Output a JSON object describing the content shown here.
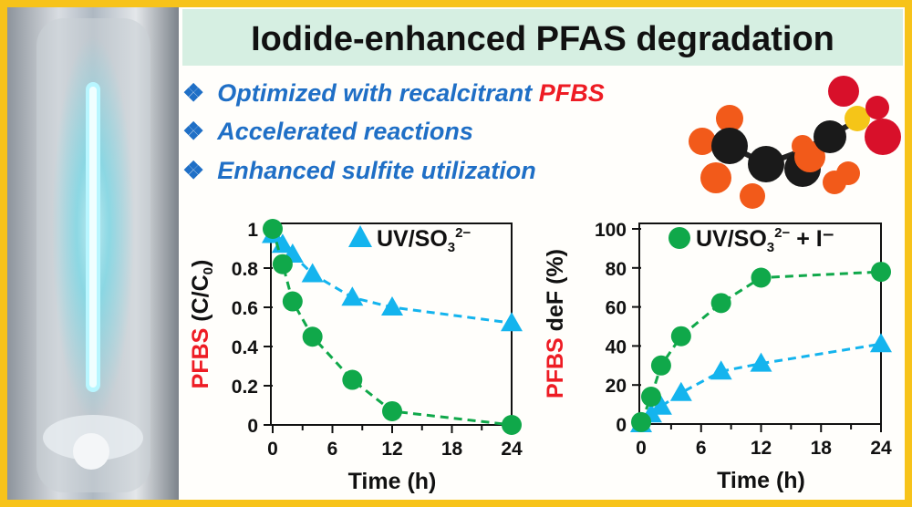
{
  "title": "Iodide-enhanced PFAS degradation",
  "bullets": [
    {
      "symbol": "❖",
      "text": "Optimized with recalcitrant ",
      "highlight": "PFBS"
    },
    {
      "symbol": "❖",
      "text": "Accelerated reactions"
    },
    {
      "symbol": "❖",
      "text": "Enhanced sulfite utilization"
    }
  ],
  "colors": {
    "border": "#f7c31a",
    "title_bg": "#d6efe2",
    "bullet": "#1f6fc6",
    "highlight": "#ee1c24",
    "green": "#10a84a",
    "blue": "#14b4ee"
  },
  "chart_data": [
    {
      "type": "line",
      "xlabel": "Time (h)",
      "ylabel": {
        "red": "PFBS",
        "rest": " (C/C",
        "sub": "0",
        "end": ")"
      },
      "xlim": [
        0,
        24
      ],
      "ylim": [
        0,
        1
      ],
      "xticks": [
        0,
        6,
        12,
        18,
        24
      ],
      "yticks": [
        "0",
        "0.2",
        "0.4",
        "0.6",
        "0.8",
        "1"
      ],
      "legend": {
        "label": "UV/SO",
        "sub": "3",
        "sup": "2−",
        "extra": "",
        "marker": "triangle",
        "placement": "top-right"
      },
      "x": [
        0,
        1,
        2,
        4,
        8,
        12,
        24
      ],
      "series": [
        {
          "name": "UV/SO3 2−",
          "marker": "triangle",
          "color": "#14b4ee",
          "values": [
            0.97,
            0.92,
            0.87,
            0.77,
            0.65,
            0.6,
            0.52
          ]
        },
        {
          "name": "UV/SO3 2− + I−",
          "marker": "circle",
          "color": "#10a84a",
          "values": [
            1.0,
            0.82,
            0.63,
            0.45,
            0.23,
            0.07,
            0.0
          ]
        }
      ]
    },
    {
      "type": "line",
      "xlabel": "Time (h)",
      "ylabel": {
        "red": "PFBS",
        "rest": " deF (%)",
        "sub": "",
        "end": ""
      },
      "xlim": [
        0,
        24
      ],
      "ylim": [
        0,
        100
      ],
      "xticks": [
        0,
        6,
        12,
        18,
        24
      ],
      "yticks": [
        "0",
        "20",
        "40",
        "60",
        "80",
        "100"
      ],
      "legend": {
        "label": "UV/SO",
        "sub": "3",
        "sup": "2−",
        "extra": " + I⁻",
        "marker": "circle",
        "placement": "top-right"
      },
      "x": [
        0,
        1,
        2,
        4,
        8,
        12,
        24
      ],
      "series": [
        {
          "name": "UV/SO3 2−",
          "marker": "triangle",
          "color": "#14b4ee",
          "values": [
            0,
            5,
            9,
            16,
            27,
            31,
            41
          ]
        },
        {
          "name": "UV/SO3 2− + I−",
          "marker": "circle",
          "color": "#10a84a",
          "values": [
            1,
            14,
            30,
            45,
            62,
            75,
            78
          ]
        }
      ]
    }
  ]
}
